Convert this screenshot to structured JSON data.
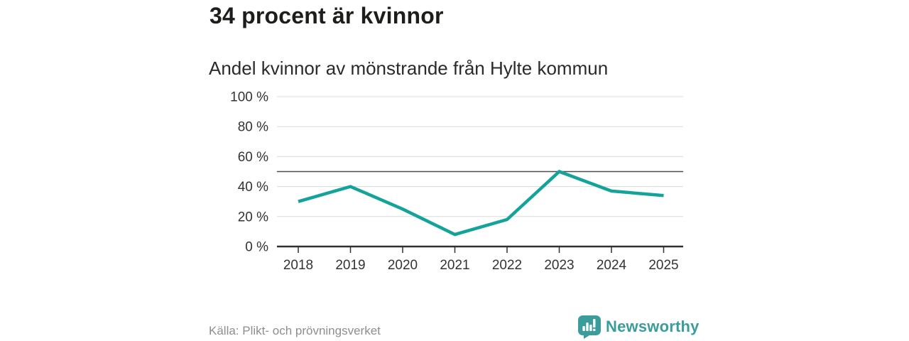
{
  "chart_data": {
    "type": "line",
    "title": "34 procent är kvinnor",
    "subtitle": "Andel kvinnor av mönstrande från Hylte kommun",
    "categories": [
      "2018",
      "2019",
      "2020",
      "2021",
      "2022",
      "2023",
      "2024",
      "2025"
    ],
    "values": [
      30,
      40,
      25,
      8,
      18,
      50,
      37,
      34
    ],
    "unit": "%",
    "ylim": [
      0,
      100
    ],
    "yticks": [
      {
        "value": 100,
        "label": "100 %"
      },
      {
        "value": 80,
        "label": "80 %"
      },
      {
        "value": 60,
        "label": "60 %"
      },
      {
        "value": 40,
        "label": "40 %"
      },
      {
        "value": 20,
        "label": "20 %"
      },
      {
        "value": 0,
        "label": "0 %"
      }
    ],
    "reference_line": 50,
    "grid": true,
    "legend": "none",
    "colors": {
      "line": "#14a39a",
      "grid": "#dcdcdc",
      "axis": "#303030",
      "reference": "#4d4d4d",
      "tick_label": "#333333"
    }
  },
  "footer": {
    "source": "Källa: Plikt- och prövningsverket",
    "brand": "Newsworthy",
    "brand_color": "#3b9d9b"
  },
  "icons": {
    "brand_logo": "bar-chart-speech-bubble-icon"
  }
}
